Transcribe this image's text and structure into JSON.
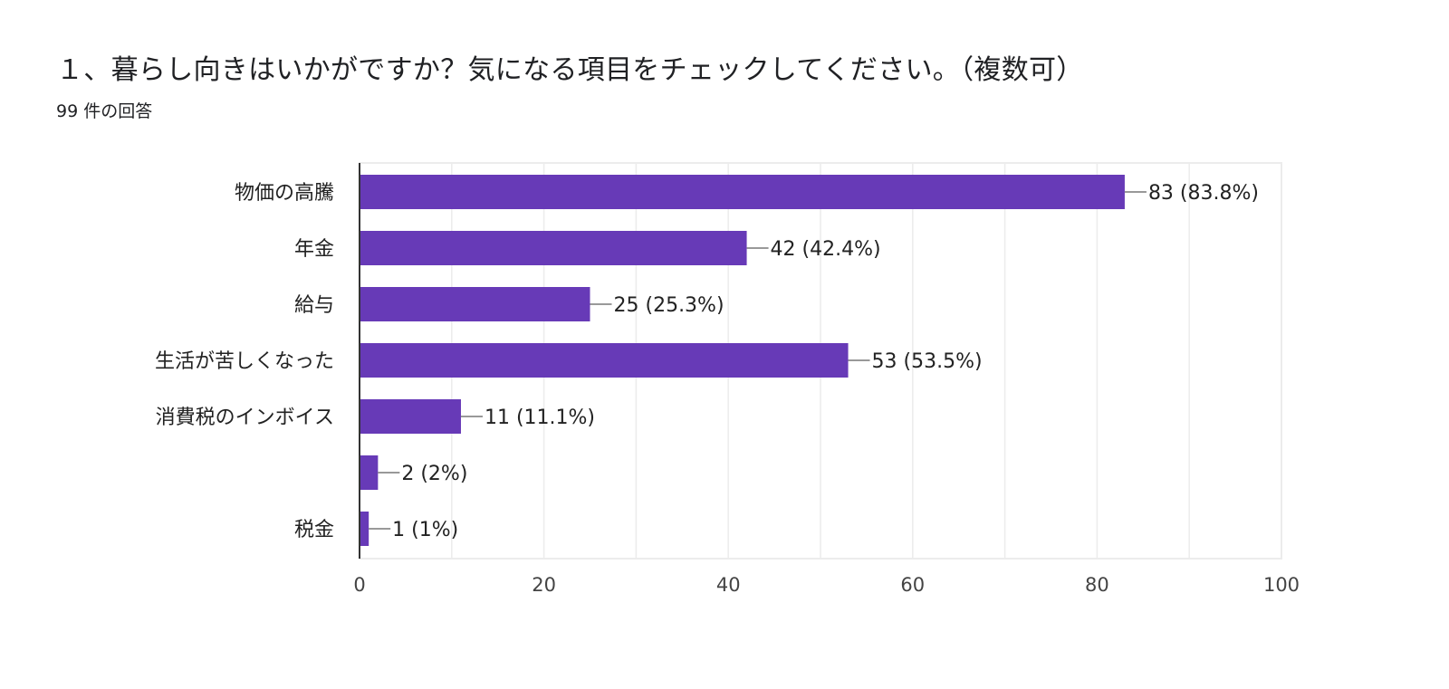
{
  "question": {
    "title": "１、暮らし向きはいかがですか？気になる項目をチェックしてください。（複数可）",
    "response_count": "99 件の回答"
  },
  "colors": {
    "bar": "#673ab7",
    "grid": "#ececec",
    "axis": "#333333",
    "leader": "#999999"
  },
  "chart_data": {
    "type": "bar",
    "orientation": "horizontal",
    "title": "",
    "xlabel": "",
    "ylabel": "",
    "categories": [
      "物価の高騰",
      "年金",
      "給与",
      "生活が苦しくなった",
      "消費税のインボイス",
      "",
      "税金"
    ],
    "values": [
      83,
      42,
      25,
      53,
      11,
      2,
      1
    ],
    "data_labels": [
      "83 (83.8%)",
      "42 (42.4%)",
      "25 (25.3%)",
      "53 (53.5%)",
      "11 (11.1%)",
      "2 (2%)",
      "1 (1%)"
    ],
    "xlim": [
      0,
      100
    ],
    "xticks": [
      0,
      20,
      40,
      60,
      80,
      100
    ],
    "grid": true,
    "legend": "none"
  }
}
